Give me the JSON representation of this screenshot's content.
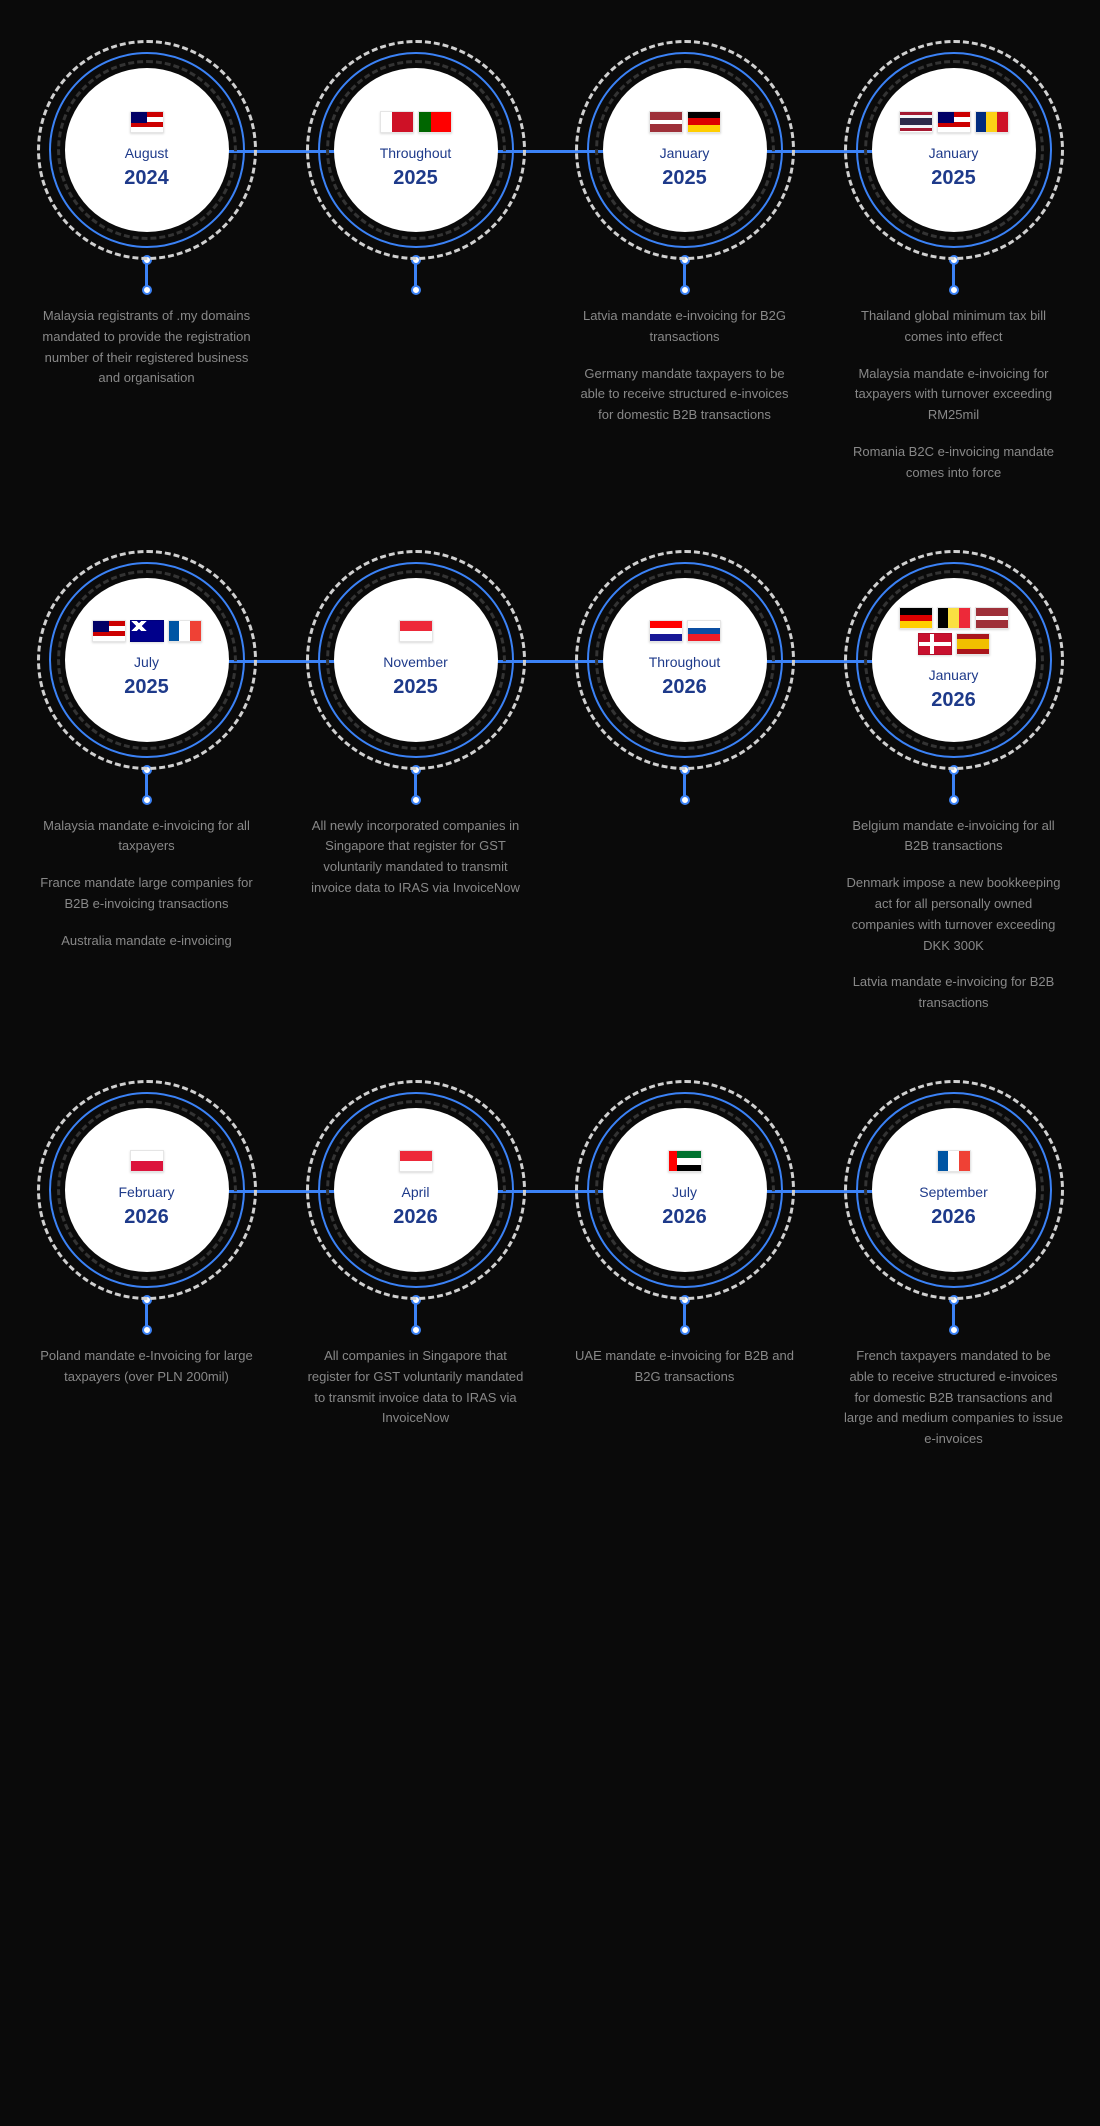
{
  "background_color": "#0a0a0a",
  "circle_colors": {
    "outer_dash": "#d0d0d0",
    "ring_blue": "#3b82f6",
    "inner_dash": "#333333",
    "inner_fill": "#ffffff"
  },
  "text_colors": {
    "date": "#1e3a8a",
    "desc": "#888888"
  },
  "flag_colors": {
    "malaysia": [
      "#cc0001",
      "#ffffff",
      "#cc0001",
      "#ffffff"
    ],
    "malaysia_canton": "#010066",
    "bahrain": [
      "#ffffff",
      "#ce1126"
    ],
    "portugal": [
      "#006600",
      "#ff0000"
    ],
    "latvia": [
      "#9e3039",
      "#ffffff",
      "#9e3039"
    ],
    "germany": [
      "#000000",
      "#dd0000",
      "#ffce00"
    ],
    "thailand": [
      "#a51931",
      "#f4f5f8",
      "#2d2a4a",
      "#f4f5f8",
      "#a51931"
    ],
    "romania": [
      "#002b7f",
      "#fcd116",
      "#ce1126"
    ],
    "australia": "#00008b",
    "france": [
      "#0055a4",
      "#ffffff",
      "#ef4135"
    ],
    "singapore": [
      "#ed2939",
      "#ffffff"
    ],
    "croatia": [
      "#ff0000",
      "#ffffff",
      "#171796"
    ],
    "slovakia": [
      "#ffffff",
      "#0b4ea2",
      "#ee1c25"
    ],
    "belgium": [
      "#000000",
      "#fae042",
      "#ed2939"
    ],
    "denmark": "#c8102e",
    "spain": [
      "#aa151b",
      "#f1bf00",
      "#aa151b"
    ],
    "poland": [
      "#ffffff",
      "#dc143c"
    ],
    "uae": [
      "#00732f",
      "#ffffff",
      "#000000"
    ],
    "uae_hoist": "#ff0000"
  },
  "rows": [
    [
      {
        "month": "August",
        "year": "2024",
        "flags": [
          "malaysia"
        ],
        "descs": [
          "Malaysia registrants of .my domains mandated to provide the registration number of their registered business and organisation"
        ]
      },
      {
        "month": "Throughout",
        "year": "2025",
        "flags": [
          "bahrain",
          "portugal"
        ],
        "descs": []
      },
      {
        "month": "January",
        "year": "2025",
        "flags": [
          "latvia",
          "germany"
        ],
        "descs": [
          "Latvia mandate e-invoicing for B2G transactions",
          "Germany mandate taxpayers to be able to receive structured e-invoices for domestic B2B transactions"
        ]
      },
      {
        "month": "January",
        "year": "2025",
        "flags": [
          "thailand",
          "malaysia",
          "romania"
        ],
        "descs": [
          "Thailand global minimum tax bill comes into effect",
          "Malaysia mandate e-invoicing for taxpayers with turnover exceeding RM25mil",
          "Romania B2C e-invoicing mandate comes into force"
        ]
      }
    ],
    [
      {
        "month": "July",
        "year": "2025",
        "flags": [
          "malaysia",
          "australia",
          "france"
        ],
        "descs": [
          "Malaysia mandate e-invoicing for all taxpayers",
          "France mandate large companies for B2B e-invoicing transactions",
          "Australia mandate e-invoicing"
        ]
      },
      {
        "month": "November",
        "year": "2025",
        "flags": [
          "singapore"
        ],
        "descs": [
          "All newly incorporated companies in Singapore that register for GST voluntarily mandated to transmit invoice data to IRAS via InvoiceNow"
        ]
      },
      {
        "month": "Throughout",
        "year": "2026",
        "flags": [
          "croatia",
          "slovakia"
        ],
        "descs": []
      },
      {
        "month": "January",
        "year": "2026",
        "flags": [
          "germany",
          "belgium",
          "latvia",
          "denmark",
          "spain"
        ],
        "descs": [
          "Belgium mandate e-invoicing for all B2B transactions",
          "Denmark impose a new bookkeeping act for all personally owned companies with turnover exceeding DKK 300K",
          "Latvia mandate e-invoicing for B2B transactions"
        ]
      }
    ],
    [
      {
        "month": "February",
        "year": "2026",
        "flags": [
          "poland"
        ],
        "descs": [
          "Poland mandate e-Invoicing for large taxpayers (over PLN 200mil)"
        ]
      },
      {
        "month": "April",
        "year": "2026",
        "flags": [
          "singapore"
        ],
        "descs": [
          "All companies in Singapore that register for GST voluntarily mandated to transmit invoice data to IRAS via InvoiceNow"
        ]
      },
      {
        "month": "July",
        "year": "2026",
        "flags": [
          "uae"
        ],
        "descs": [
          "UAE mandate e-invoicing for B2B and B2G transactions"
        ]
      },
      {
        "month": "September",
        "year": "2026",
        "flags": [
          "france"
        ],
        "descs": [
          "French taxpayers mandated to be able to receive structured e-invoices for domestic B2B transactions and large and medium companies to issue e-invoices"
        ]
      }
    ]
  ]
}
